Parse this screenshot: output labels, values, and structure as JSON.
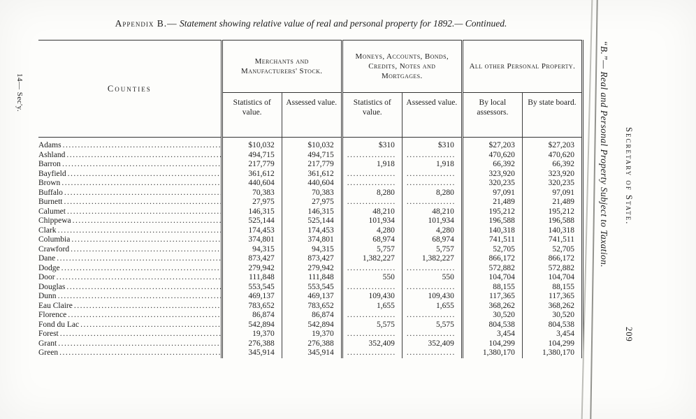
{
  "title": {
    "prefix": "Appendix B.—",
    "rest": " Statement showing relative value of real and personal property for 1892.— Continued."
  },
  "margins": {
    "left_note": "14— Sec'y.",
    "right_caption": "“B.”— Real and Personal Property Subject to Taxation.",
    "right_office": "Secretary of State.",
    "page_number": "209"
  },
  "table": {
    "counties_header": "Counties",
    "group_headers": [
      "Merchants and Manufacturers' Stock.",
      "Moneys, Accounts, Bonds, Credits, Notes and Mortgages.",
      "All other Personal Property."
    ],
    "sub_headers": [
      "Statistics of value.",
      "Assessed value.",
      "Statistics of value.",
      "Assessed value.",
      "By local assessors.",
      "By state board."
    ],
    "blank_filler": "................",
    "rows": [
      {
        "county": "Adams",
        "values": [
          "$10,032",
          "$10,032",
          "$310",
          "$310",
          "$27,203",
          "$27,203"
        ]
      },
      {
        "county": "Ashland",
        "values": [
          "494,715",
          "494,715",
          "",
          "",
          "470,620",
          "470,620"
        ]
      },
      {
        "county": "Barron",
        "values": [
          "217,779",
          "217,779",
          "1,918",
          "1,918",
          "66,392",
          "66,392"
        ]
      },
      {
        "county": "Bayfield",
        "values": [
          "361,612",
          "361,612",
          "",
          "",
          "323,920",
          "323,920"
        ]
      },
      {
        "county": "Brown",
        "values": [
          "440,604",
          "440,604",
          "",
          "",
          "320,235",
          "320,235"
        ]
      },
      {
        "county": "Buffalo",
        "values": [
          "70,383",
          "70,383",
          "8,280",
          "8,280",
          "97,091",
          "97,091"
        ]
      },
      {
        "county": "Burnett",
        "values": [
          "27,975",
          "27,975",
          "",
          "",
          "21,489",
          "21,489"
        ]
      },
      {
        "county": "Calumet",
        "values": [
          "146,315",
          "146,315",
          "48,210",
          "48,210",
          "195,212",
          "195,212"
        ]
      },
      {
        "county": "Chippewa",
        "values": [
          "525,144",
          "525,144",
          "101,934",
          "101,934",
          "196,588",
          "196,588"
        ]
      },
      {
        "county": "Clark",
        "values": [
          "174,453",
          "174,453",
          "4,280",
          "4,280",
          "140,318",
          "140,318"
        ]
      },
      {
        "county": "Columbia",
        "values": [
          "374,801",
          "374,801",
          "68,974",
          "68,974",
          "741,511",
          "741,511"
        ]
      },
      {
        "county": "Crawford",
        "values": [
          "94,315",
          "94,315",
          "5,757",
          "5,757",
          "52,705",
          "52,705"
        ]
      },
      {
        "county": "Dane",
        "values": [
          "873,427",
          "873,427",
          "1,382,227",
          "1,382,227",
          "866,172",
          "866,172"
        ]
      },
      {
        "county": "Dodge",
        "values": [
          "279,942",
          "279,942",
          "",
          "",
          "572,882",
          "572,882"
        ]
      },
      {
        "county": "Door",
        "values": [
          "111,848",
          "111,848",
          "550",
          "550",
          "104,704",
          "104,704"
        ]
      },
      {
        "county": "Douglas",
        "values": [
          "553,545",
          "553,545",
          "",
          "",
          "88,155",
          "88,155"
        ]
      },
      {
        "county": "Dunn",
        "values": [
          "469,137",
          "469,137",
          "109,430",
          "109,430",
          "117,365",
          "117,365"
        ]
      },
      {
        "county": "Eau Claire",
        "values": [
          "783,652",
          "783,652",
          "1,655",
          "1,655",
          "368,262",
          "368,262"
        ]
      },
      {
        "county": "Florence",
        "values": [
          "86,874",
          "86,874",
          "",
          "",
          "30,520",
          "30,520"
        ]
      },
      {
        "county": "Fond du Lac",
        "values": [
          "542,894",
          "542,894",
          "5,575",
          "5,575",
          "804,538",
          "804,538"
        ]
      },
      {
        "county": "Forest",
        "values": [
          "19,370",
          "19,370",
          "",
          "",
          "3,454",
          "3,454"
        ]
      },
      {
        "county": "Grant",
        "values": [
          "276,388",
          "276,388",
          "352,409",
          "352,409",
          "104,299",
          "104,299"
        ]
      },
      {
        "county": "Green",
        "values": [
          "345,914",
          "345,914",
          "",
          "",
          "1,380,170",
          "1,380,170"
        ]
      }
    ]
  }
}
